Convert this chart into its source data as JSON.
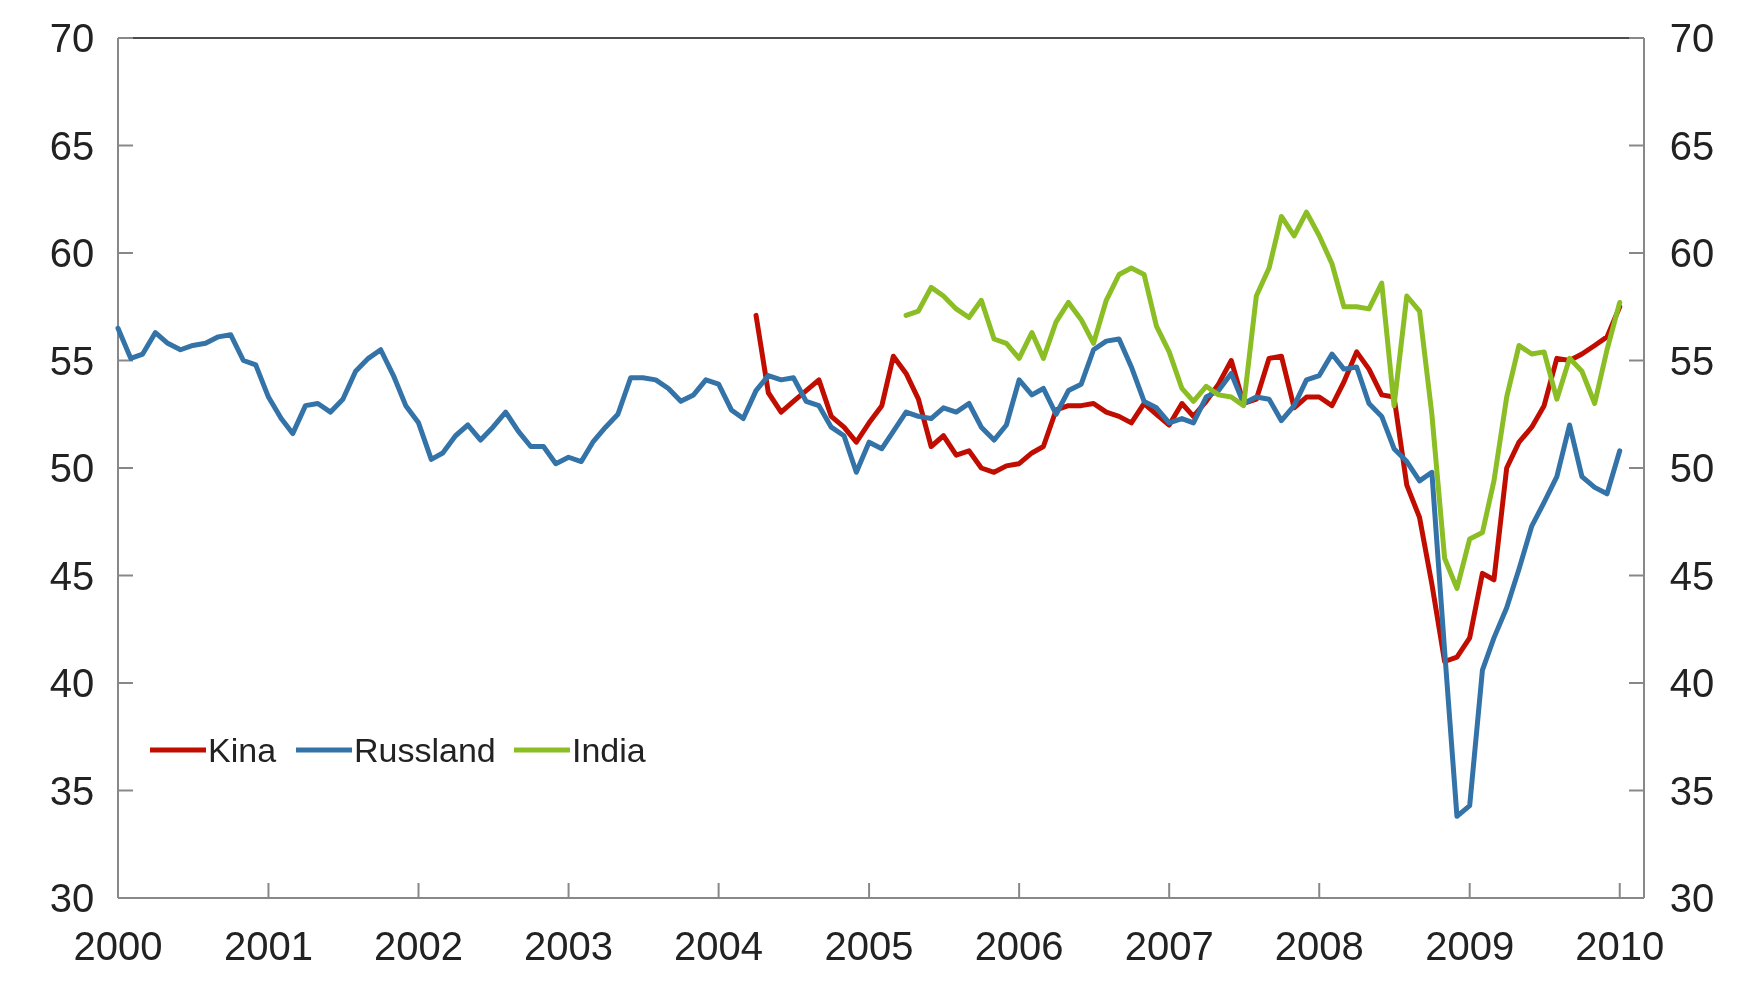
{
  "chart_data": {
    "type": "line",
    "xlim": [
      "2000-01",
      "2010-03"
    ],
    "xticks": [
      {
        "value": "2000-01",
        "label": "2000"
      },
      {
        "value": "2001-01",
        "label": "2001"
      },
      {
        "value": "2002-01",
        "label": "2002"
      },
      {
        "value": "2003-01",
        "label": "2003"
      },
      {
        "value": "2004-01",
        "label": "2004"
      },
      {
        "value": "2005-01",
        "label": "2005"
      },
      {
        "value": "2006-01",
        "label": "2006"
      },
      {
        "value": "2007-01",
        "label": "2007"
      },
      {
        "value": "2008-01",
        "label": "2008"
      },
      {
        "value": "2009-01",
        "label": "2009"
      },
      {
        "value": "2010-01",
        "label": "2010"
      }
    ],
    "ylim": [
      30,
      70
    ],
    "yticks": [
      30,
      35,
      40,
      45,
      50,
      55,
      60,
      65,
      70
    ],
    "y2lim": [
      30,
      70
    ],
    "y2ticks": [
      30,
      35,
      40,
      45,
      50,
      55,
      60,
      65,
      70
    ],
    "grid": false,
    "legend": "bottom left",
    "marker": "none",
    "line_style": "solid",
    "series": [
      {
        "name": "Kina",
        "color": "#c00d00",
        "x": [
          "2004-04",
          "2004-05",
          "2004-06",
          "2004-07",
          "2004-08",
          "2004-09",
          "2004-10",
          "2004-11",
          "2004-12",
          "2005-01",
          "2005-02",
          "2005-03",
          "2005-04",
          "2005-05",
          "2005-06",
          "2005-07",
          "2005-08",
          "2005-09",
          "2005-10",
          "2005-11",
          "2005-12",
          "2006-01",
          "2006-02",
          "2006-03",
          "2006-04",
          "2006-05",
          "2006-06",
          "2006-07",
          "2006-08",
          "2006-09",
          "2006-10",
          "2006-11",
          "2006-12",
          "2007-01",
          "2007-02",
          "2007-03",
          "2007-04",
          "2007-05",
          "2007-06",
          "2007-07",
          "2007-08",
          "2007-09",
          "2007-10",
          "2007-11",
          "2007-12",
          "2008-01",
          "2008-02",
          "2008-03",
          "2008-04",
          "2008-05",
          "2008-06",
          "2008-07",
          "2008-08",
          "2008-09",
          "2008-10",
          "2008-11",
          "2008-12",
          "2009-01",
          "2009-02",
          "2009-03",
          "2009-04",
          "2009-05",
          "2009-06",
          "2009-07",
          "2009-08",
          "2009-09",
          "2009-10",
          "2009-11",
          "2009-12",
          "2010-01"
        ],
        "values": [
          57.1,
          53.5,
          52.6,
          53.1,
          53.6,
          54.1,
          52.4,
          51.9,
          51.2,
          52.1,
          52.9,
          55.2,
          54.4,
          53.2,
          51.0,
          51.5,
          50.6,
          50.8,
          50.0,
          49.8,
          50.1,
          50.2,
          50.7,
          51.0,
          52.7,
          52.9,
          52.9,
          53.0,
          52.6,
          52.4,
          52.1,
          53.0,
          52.5,
          52.0,
          53.0,
          52.4,
          53.1,
          53.9,
          55.0,
          53.0,
          53.2,
          55.1,
          55.2,
          52.8,
          53.3,
          53.3,
          52.9,
          54.0,
          55.4,
          54.6,
          53.4,
          53.3,
          49.2,
          47.7,
          44.6,
          41.0,
          41.2,
          42.1,
          45.1,
          44.8,
          50.0,
          51.2,
          51.9,
          52.9,
          55.1,
          55.0,
          55.3,
          55.7,
          56.1,
          57.5
        ]
      },
      {
        "name": "Russland",
        "color": "#3473a8",
        "x": [
          "2000-01",
          "2000-02",
          "2000-03",
          "2000-04",
          "2000-05",
          "2000-06",
          "2000-07",
          "2000-08",
          "2000-09",
          "2000-10",
          "2000-11",
          "2000-12",
          "2001-01",
          "2001-02",
          "2001-03",
          "2001-04",
          "2001-05",
          "2001-06",
          "2001-07",
          "2001-08",
          "2001-09",
          "2001-10",
          "2001-11",
          "2001-12",
          "2002-01",
          "2002-02",
          "2002-03",
          "2002-04",
          "2002-05",
          "2002-06",
          "2002-07",
          "2002-08",
          "2002-09",
          "2002-10",
          "2002-11",
          "2002-12",
          "2003-01",
          "2003-02",
          "2003-03",
          "2003-04",
          "2003-05",
          "2003-06",
          "2003-07",
          "2003-08",
          "2003-09",
          "2003-10",
          "2003-11",
          "2003-12",
          "2004-01",
          "2004-02",
          "2004-03",
          "2004-04",
          "2004-05",
          "2004-06",
          "2004-07",
          "2004-08",
          "2004-09",
          "2004-10",
          "2004-11",
          "2004-12",
          "2005-01",
          "2005-02",
          "2005-03",
          "2005-04",
          "2005-05",
          "2005-06",
          "2005-07",
          "2005-08",
          "2005-09",
          "2005-10",
          "2005-11",
          "2005-12",
          "2006-01",
          "2006-02",
          "2006-03",
          "2006-04",
          "2006-05",
          "2006-06",
          "2006-07",
          "2006-08",
          "2006-09",
          "2006-10",
          "2006-11",
          "2006-12",
          "2007-01",
          "2007-02",
          "2007-03",
          "2007-04",
          "2007-05",
          "2007-06",
          "2007-07",
          "2007-08",
          "2007-09",
          "2007-10",
          "2007-11",
          "2007-12",
          "2008-01",
          "2008-02",
          "2008-03",
          "2008-04",
          "2008-05",
          "2008-06",
          "2008-07",
          "2008-08",
          "2008-09",
          "2008-10",
          "2008-11",
          "2008-12",
          "2009-01",
          "2009-02",
          "2009-03",
          "2009-04",
          "2009-05",
          "2009-06",
          "2009-07",
          "2009-08",
          "2009-09",
          "2009-10",
          "2009-11",
          "2009-12",
          "2010-01"
        ],
        "values": [
          56.5,
          55.1,
          55.3,
          56.3,
          55.8,
          55.5,
          55.7,
          55.8,
          56.1,
          56.2,
          55.0,
          54.8,
          53.3,
          52.3,
          51.6,
          52.9,
          53.0,
          52.6,
          53.2,
          54.5,
          55.1,
          55.5,
          54.3,
          52.9,
          52.1,
          50.4,
          50.7,
          51.5,
          52.0,
          51.3,
          51.9,
          52.6,
          51.7,
          51.0,
          51.0,
          50.2,
          50.5,
          50.3,
          51.2,
          51.9,
          52.5,
          54.2,
          54.2,
          54.1,
          53.7,
          53.1,
          53.4,
          54.1,
          53.9,
          52.7,
          52.3,
          53.6,
          54.3,
          54.1,
          54.2,
          53.1,
          52.9,
          51.9,
          51.5,
          49.8,
          51.2,
          50.9,
          51.7,
          52.6,
          52.4,
          52.3,
          52.8,
          52.6,
          53.0,
          51.9,
          51.3,
          52.0,
          54.1,
          53.4,
          53.7,
          52.5,
          53.6,
          53.9,
          55.5,
          55.9,
          56.0,
          54.7,
          53.1,
          52.8,
          52.1,
          52.3,
          52.1,
          53.3,
          53.6,
          54.4,
          53.0,
          53.3,
          53.2,
          52.2,
          52.9,
          54.1,
          54.3,
          55.3,
          54.6,
          54.7,
          53.0,
          52.4,
          50.9,
          50.3,
          49.4,
          49.8,
          41.5,
          33.8,
          34.3,
          40.6,
          42.1,
          43.5,
          45.3,
          47.3,
          48.4,
          49.6,
          52.0,
          49.6,
          49.1,
          48.8,
          50.8
        ]
      },
      {
        "name": "India",
        "color": "#8bbd25",
        "x": [
          "2005-04",
          "2005-05",
          "2005-06",
          "2005-07",
          "2005-08",
          "2005-09",
          "2005-10",
          "2005-11",
          "2005-12",
          "2006-01",
          "2006-02",
          "2006-03",
          "2006-04",
          "2006-05",
          "2006-06",
          "2006-07",
          "2006-08",
          "2006-09",
          "2006-10",
          "2006-11",
          "2006-12",
          "2007-01",
          "2007-02",
          "2007-03",
          "2007-04",
          "2007-05",
          "2007-06",
          "2007-07",
          "2007-08",
          "2007-09",
          "2007-10",
          "2007-11",
          "2007-12",
          "2008-01",
          "2008-02",
          "2008-03",
          "2008-04",
          "2008-05",
          "2008-06",
          "2008-07",
          "2008-08",
          "2008-09",
          "2008-10",
          "2008-11",
          "2008-12",
          "2009-01",
          "2009-02",
          "2009-03",
          "2009-04",
          "2009-05",
          "2009-06",
          "2009-07",
          "2009-08",
          "2009-09",
          "2009-10",
          "2009-11",
          "2009-12",
          "2010-01"
        ],
        "values": [
          57.1,
          57.3,
          58.4,
          58.0,
          57.4,
          57.0,
          57.8,
          56.0,
          55.8,
          55.1,
          56.3,
          55.1,
          56.8,
          57.7,
          56.9,
          55.8,
          57.8,
          59.0,
          59.3,
          59.0,
          56.6,
          55.4,
          53.7,
          53.1,
          53.8,
          53.4,
          53.3,
          52.9,
          58.0,
          59.3,
          61.7,
          60.8,
          61.9,
          60.8,
          59.5,
          57.5,
          57.5,
          57.4,
          58.6,
          52.9,
          58.0,
          57.3,
          52.5,
          45.8,
          44.4,
          46.7,
          47.0,
          49.4,
          53.3,
          55.7,
          55.3,
          55.4,
          53.2,
          55.1,
          54.5,
          53.0,
          55.5,
          57.7
        ]
      }
    ]
  }
}
